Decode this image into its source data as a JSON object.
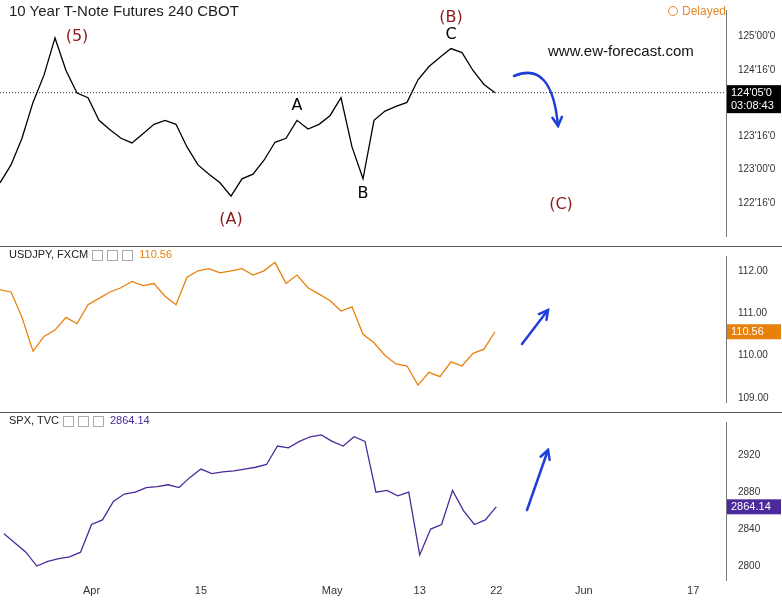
{
  "chart_data": [
    {
      "type": "line",
      "title": "10 Year T-Note Futures 240 CBOT",
      "status": "Delayed",
      "watermark": "www.ew-forecast.com",
      "last_label": "124'05'0",
      "countdown": "03:08:43",
      "color": "#000000",
      "grid": false,
      "tick_labels": "y",
      "categories": [
        null,
        null,
        null,
        null,
        null,
        null,
        null,
        null,
        "Apr",
        null,
        null,
        null,
        null,
        null,
        null,
        null,
        null,
        null,
        "15",
        null,
        null,
        null,
        null,
        null,
        null,
        null,
        null,
        null,
        null,
        null,
        "May",
        null,
        null,
        null,
        null,
        null,
        null,
        null,
        "13",
        null,
        null,
        null,
        null,
        null,
        null,
        "22",
        null,
        null,
        null,
        null,
        null,
        null,
        null,
        "Jun",
        null,
        null,
        null,
        null,
        null,
        null,
        null,
        null,
        null,
        "17",
        null,
        null,
        null
      ],
      "values": [
        122.8,
        123.07,
        123.47,
        124.01,
        124.42,
        124.98,
        124.49,
        124.15,
        124.08,
        123.74,
        123.6,
        123.47,
        123.4,
        123.54,
        123.68,
        123.74,
        123.68,
        123.34,
        123.07,
        122.93,
        122.8,
        122.6,
        122.86,
        122.93,
        123.14,
        123.41,
        123.47,
        123.74,
        123.61,
        123.68,
        123.81,
        124.08,
        123.34,
        122.86,
        123.74,
        123.88,
        123.95,
        124.01,
        124.35,
        124.55,
        124.69,
        124.82,
        124.76,
        124.49,
        124.28,
        124.15625,
        null,
        null,
        null,
        null,
        null,
        null,
        null,
        null,
        null,
        null,
        null,
        null,
        null,
        null,
        null,
        null,
        null,
        null,
        null,
        null,
        null
      ],
      "ylim": [
        122.0,
        125.4
      ],
      "yticks": [
        {
          "value": 122.5,
          "label": "122'16'0"
        },
        {
          "value": 123,
          "label": "123'00'0"
        },
        {
          "value": 123.5,
          "label": "123'16'0"
        },
        {
          "value": 124.5,
          "label": "124'16'0"
        },
        {
          "value": 125,
          "label": "125'00'0"
        }
      ],
      "annotations": [
        {
          "text": "(5)",
          "x": 7,
          "y": 125.0,
          "color": "#8b1a1a"
        },
        {
          "text": "(A)",
          "x": 21,
          "y": 122.25,
          "color": "#8b1a1a"
        },
        {
          "text": "A",
          "x": 27,
          "y": 123.96,
          "color": "#000000"
        },
        {
          "text": "B",
          "x": 33,
          "y": 122.64,
          "color": "#000000"
        },
        {
          "text": "C",
          "x": 41,
          "y": 125.03,
          "color": "#000000"
        },
        {
          "text": "(B)",
          "x": 41,
          "y": 125.28,
          "color": "#8b1a1a"
        },
        {
          "text": "(C)",
          "x": 51,
          "y": 122.47,
          "color": "#8b1a1a"
        }
      ]
    },
    {
      "type": "line",
      "title": "USDJPY, FXCM",
      "color": "#e8800c",
      "grid": false,
      "tick_labels": "y",
      "categories": [
        null,
        null,
        null,
        null,
        null,
        null,
        null,
        null,
        "Apr",
        null,
        null,
        null,
        null,
        null,
        null,
        null,
        null,
        null,
        "15",
        null,
        null,
        null,
        null,
        null,
        null,
        null,
        null,
        null,
        null,
        null,
        "May",
        null,
        null,
        null,
        null,
        null,
        null,
        null,
        "13",
        null,
        null,
        null,
        null,
        null,
        null,
        "22",
        null,
        null,
        null,
        null,
        null,
        null,
        null,
        "Jun",
        null,
        null,
        null,
        null,
        null,
        null,
        null,
        null,
        null,
        "17",
        null,
        null,
        null
      ],
      "values": [
        111.55,
        111.5,
        110.9,
        110.1,
        110.45,
        110.6,
        110.9,
        110.75,
        111.2,
        111.35,
        111.5,
        111.6,
        111.75,
        111.65,
        111.7,
        111.4,
        111.2,
        111.85,
        112.0,
        112.05,
        111.95,
        112.0,
        112.05,
        111.9,
        112.0,
        112.2,
        111.7,
        111.9,
        111.6,
        111.45,
        111.3,
        111.05,
        111.15,
        110.5,
        110.3,
        110.0,
        109.8,
        109.75,
        109.3,
        109.6,
        109.5,
        109.85,
        109.75,
        110.05,
        110.15,
        110.56,
        null,
        null,
        null,
        null,
        null,
        null,
        null,
        null,
        null,
        null,
        null,
        null,
        null,
        null,
        null,
        null,
        null,
        null,
        null,
        null,
        null
      ],
      "ylim": [
        108.9,
        112.35
      ],
      "yticks": [
        {
          "value": 109,
          "label": "109.00"
        },
        {
          "value": 110,
          "label": "110.00"
        },
        {
          "value": 111,
          "label": "111.00"
        },
        {
          "value": 112,
          "label": "112.00"
        }
      ]
    },
    {
      "type": "line",
      "title": "SPX, TVC",
      "color": "#4b2a9b",
      "grid": false,
      "categories": [
        null,
        null,
        null,
        null,
        null,
        null,
        null,
        null,
        "Apr",
        null,
        null,
        null,
        null,
        null,
        null,
        null,
        null,
        null,
        "15",
        null,
        null,
        null,
        null,
        null,
        null,
        null,
        null,
        null,
        null,
        null,
        "May",
        null,
        null,
        null,
        null,
        null,
        null,
        null,
        "13",
        null,
        null,
        null,
        null,
        null,
        null,
        "22",
        null,
        null,
        null,
        null,
        null,
        null,
        null,
        "Jun",
        null,
        null,
        null,
        null,
        null,
        null,
        null,
        null,
        null,
        "17",
        null,
        null,
        null
      ],
      "values": [
        2835,
        2825,
        2815,
        2800,
        2805,
        2808,
        2810,
        2815,
        2845,
        2850,
        2870,
        2878,
        2880,
        2885,
        2886,
        2888,
        2885,
        2896,
        2905,
        2900,
        2902,
        2903,
        2905,
        2907,
        2910,
        2930,
        2928,
        2935,
        2940,
        2942,
        2935,
        2930,
        2940,
        2935,
        2880,
        2882,
        2876,
        2880,
        2812,
        2840,
        2845,
        2882,
        2860,
        2845,
        2850,
        2864.14,
        null,
        null,
        null,
        null,
        null,
        null,
        null,
        null,
        null,
        null,
        null,
        null,
        null,
        null,
        null,
        null,
        null,
        null,
        null,
        null,
        null
      ],
      "ylim": [
        2784,
        2956
      ],
      "yticks": [
        2800,
        2840,
        2880,
        2920
      ]
    }
  ]
}
